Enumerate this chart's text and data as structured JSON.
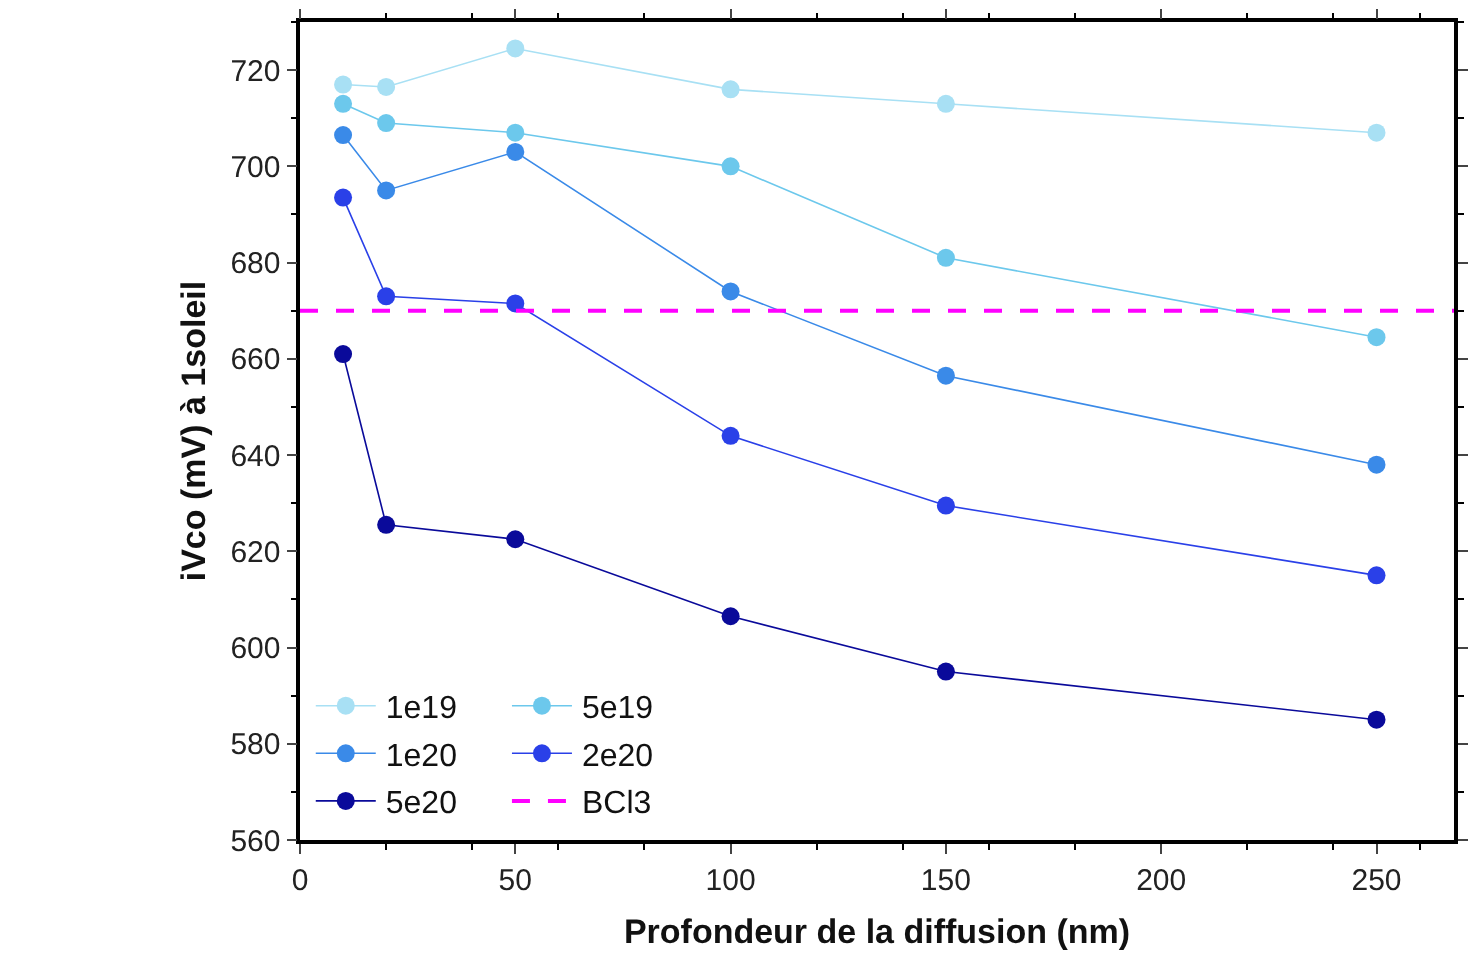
{
  "chart_data": {
    "type": "line",
    "xlabel": "Profondeur de la diffusion (nm)",
    "ylabel": "iVco (mV) à 1soleil",
    "x": [
      10,
      20,
      50,
      100,
      150,
      250
    ],
    "series": [
      {
        "name": "1e19",
        "color": "#a8e0f4",
        "values": [
          717,
          716.5,
          724.5,
          716,
          713,
          707
        ]
      },
      {
        "name": "5e19",
        "color": "#6cc8ec",
        "values": [
          713,
          709,
          707,
          700,
          681,
          664.5
        ]
      },
      {
        "name": "1e20",
        "color": "#3a8ae8",
        "values": [
          706.5,
          695,
          703,
          674,
          656.5,
          638
        ]
      },
      {
        "name": "2e20",
        "color": "#2a40e8",
        "values": [
          693.5,
          673,
          671.5,
          644,
          629.5,
          615
        ]
      },
      {
        "name": "5e20",
        "color": "#0a0a9a",
        "values": [
          661,
          625.5,
          622.5,
          606.5,
          595,
          585
        ]
      }
    ],
    "ref_lines": [
      {
        "axis": "y",
        "value": 670,
        "label": "BCl3",
        "color": "#ff00ff",
        "line_style": "dashed"
      }
    ],
    "xlim": [
      0,
      268
    ],
    "xticks": [
      0,
      50,
      100,
      150,
      200,
      250
    ],
    "ylim": [
      560,
      730
    ],
    "yticks": [
      560,
      580,
      600,
      620,
      640,
      660,
      680,
      700,
      720
    ],
    "marker": "circle",
    "line_style": "solid",
    "legend": "bottom left"
  }
}
